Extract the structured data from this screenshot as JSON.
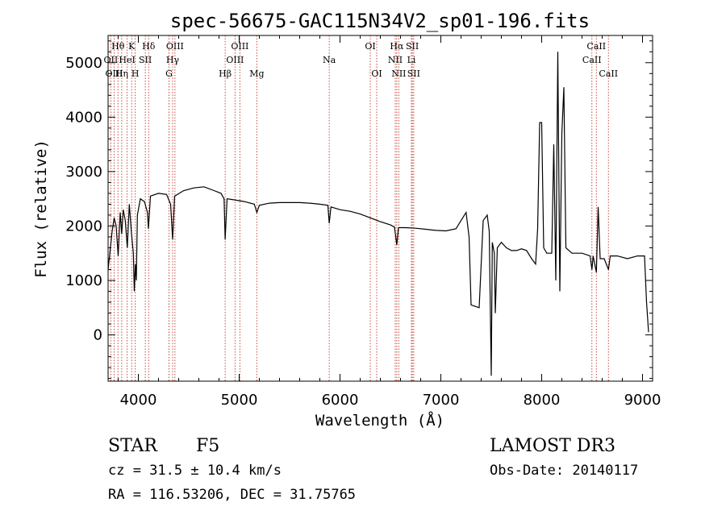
{
  "chart_data": {
    "type": "line",
    "title": "spec-56675-GAC115N34V2_sp01-196.fits",
    "xlabel": "Wavelength (Å)",
    "ylabel": "Flux (relative)",
    "xlim": [
      3700,
      9100
    ],
    "ylim": [
      -850,
      5500
    ],
    "xticks": [
      4000,
      5000,
      6000,
      7000,
      8000,
      9000
    ],
    "yticks": [
      0,
      1000,
      2000,
      3000,
      4000,
      5000
    ],
    "series": [
      {
        "name": "spectrum",
        "points": [
          [
            3700,
            1200
          ],
          [
            3720,
            1550
          ],
          [
            3740,
            1900
          ],
          [
            3760,
            2150
          ],
          [
            3780,
            2000
          ],
          [
            3800,
            1450
          ],
          [
            3820,
            2250
          ],
          [
            3835,
            1850
          ],
          [
            3850,
            2300
          ],
          [
            3870,
            2100
          ],
          [
            3890,
            1600
          ],
          [
            3910,
            2400
          ],
          [
            3930,
            1900
          ],
          [
            3950,
            1500
          ],
          [
            3960,
            800
          ],
          [
            3970,
            1300
          ],
          [
            3980,
            1000
          ],
          [
            3990,
            2200
          ],
          [
            4020,
            2500
          ],
          [
            4060,
            2450
          ],
          [
            4090,
            2250
          ],
          [
            4100,
            1950
          ],
          [
            4120,
            2550
          ],
          [
            4200,
            2600
          ],
          [
            4280,
            2580
          ],
          [
            4320,
            2400
          ],
          [
            4340,
            1750
          ],
          [
            4360,
            2550
          ],
          [
            4450,
            2650
          ],
          [
            4550,
            2700
          ],
          [
            4650,
            2720
          ],
          [
            4750,
            2650
          ],
          [
            4820,
            2600
          ],
          [
            4850,
            2500
          ],
          [
            4861,
            1750
          ],
          [
            4880,
            2500
          ],
          [
            4950,
            2480
          ],
          [
            5050,
            2450
          ],
          [
            5150,
            2400
          ],
          [
            5175,
            2250
          ],
          [
            5200,
            2380
          ],
          [
            5300,
            2420
          ],
          [
            5400,
            2430
          ],
          [
            5500,
            2430
          ],
          [
            5600,
            2430
          ],
          [
            5700,
            2420
          ],
          [
            5800,
            2400
          ],
          [
            5880,
            2380
          ],
          [
            5893,
            2050
          ],
          [
            5910,
            2350
          ],
          [
            6000,
            2300
          ],
          [
            6100,
            2270
          ],
          [
            6200,
            2220
          ],
          [
            6300,
            2150
          ],
          [
            6400,
            2080
          ],
          [
            6500,
            2020
          ],
          [
            6540,
            1980
          ],
          [
            6563,
            1650
          ],
          [
            6580,
            1970
          ],
          [
            6650,
            1970
          ],
          [
            6750,
            1960
          ],
          [
            6850,
            1940
          ],
          [
            6950,
            1920
          ],
          [
            7050,
            1910
          ],
          [
            7150,
            1950
          ],
          [
            7200,
            2100
          ],
          [
            7250,
            2250
          ],
          [
            7280,
            1800
          ],
          [
            7300,
            550
          ],
          [
            7380,
            500
          ],
          [
            7420,
            2100
          ],
          [
            7460,
            2200
          ],
          [
            7480,
            1900
          ],
          [
            7500,
            -750
          ],
          [
            7510,
            1700
          ],
          [
            7530,
            1500
          ],
          [
            7540,
            400
          ],
          [
            7560,
            1600
          ],
          [
            7600,
            1700
          ],
          [
            7650,
            1600
          ],
          [
            7700,
            1550
          ],
          [
            7750,
            1550
          ],
          [
            7800,
            1580
          ],
          [
            7850,
            1550
          ],
          [
            7900,
            1400
          ],
          [
            7940,
            1300
          ],
          [
            7960,
            1950
          ],
          [
            7980,
            3900
          ],
          [
            8000,
            3900
          ],
          [
            8020,
            1600
          ],
          [
            8050,
            1500
          ],
          [
            8100,
            1500
          ],
          [
            8120,
            3500
          ],
          [
            8140,
            1000
          ],
          [
            8160,
            5200
          ],
          [
            8180,
            800
          ],
          [
            8200,
            3700
          ],
          [
            8220,
            4550
          ],
          [
            8240,
            1600
          ],
          [
            8300,
            1500
          ],
          [
            8400,
            1500
          ],
          [
            8480,
            1450
          ],
          [
            8498,
            1200
          ],
          [
            8510,
            1450
          ],
          [
            8542,
            1150
          ],
          [
            8560,
            2350
          ],
          [
            8580,
            1400
          ],
          [
            8620,
            1400
          ],
          [
            8662,
            1200
          ],
          [
            8680,
            1450
          ],
          [
            8750,
            1450
          ],
          [
            8850,
            1400
          ],
          [
            8950,
            1450
          ],
          [
            9020,
            1450
          ],
          [
            9040,
            600
          ],
          [
            9060,
            50
          ]
        ]
      }
    ],
    "lines": [
      {
        "label": "Hθ",
        "wave": 3798,
        "row": 1
      },
      {
        "label": "OII",
        "wave": 3727,
        "row": 2
      },
      {
        "label": "OIII",
        "wave": 3760,
        "row": 3
      },
      {
        "label": "Hη",
        "wave": 3835,
        "row": 3
      },
      {
        "label": "K",
        "wave": 3934,
        "row": 1
      },
      {
        "label": "HeI",
        "wave": 3889,
        "row": 2
      },
      {
        "label": "SII",
        "wave": 4069,
        "row": 2
      },
      {
        "label": "H",
        "wave": 3969,
        "row": 3
      },
      {
        "label": "Hδ",
        "wave": 4102,
        "row": 1
      },
      {
        "label": "OIII",
        "wave": 4363,
        "row": 1
      },
      {
        "label": "Hγ",
        "wave": 4340,
        "row": 2
      },
      {
        "label": "G",
        "wave": 4304,
        "row": 3
      },
      {
        "label": "OIII",
        "wave": 5007,
        "row": 1
      },
      {
        "label": "OIII",
        "wave": 4959,
        "row": 2
      },
      {
        "label": "Hβ",
        "wave": 4861,
        "row": 3
      },
      {
        "label": "Mg",
        "wave": 5175,
        "row": 3
      },
      {
        "label": "Na",
        "wave": 5893,
        "row": 2
      },
      {
        "label": "OI",
        "wave": 6300,
        "row": 1
      },
      {
        "label": "OI",
        "wave": 6364,
        "row": 3
      },
      {
        "label": "Hα",
        "wave": 6563,
        "row": 1
      },
      {
        "label": "SII",
        "wave": 6717,
        "row": 1
      },
      {
        "label": "NII",
        "wave": 6548,
        "row": 2
      },
      {
        "label": "Li",
        "wave": 6708,
        "row": 2
      },
      {
        "label": "NII",
        "wave": 6583,
        "row": 3
      },
      {
        "label": "SII",
        "wave": 6731,
        "row": 3
      },
      {
        "label": "CaII",
        "wave": 8542,
        "row": 1
      },
      {
        "label": "CaII",
        "wave": 8498,
        "row": 2
      },
      {
        "label": "CaII",
        "wave": 8662,
        "row": 3
      }
    ]
  },
  "info": {
    "class": "STAR",
    "subclass": "F5",
    "cz": "cz = 31.5 ± 10.4 km/s",
    "radec": "RA = 116.53206, DEC =  31.75765",
    "survey": "LAMOST DR3",
    "obsdate": "Obs-Date: 20140117"
  }
}
